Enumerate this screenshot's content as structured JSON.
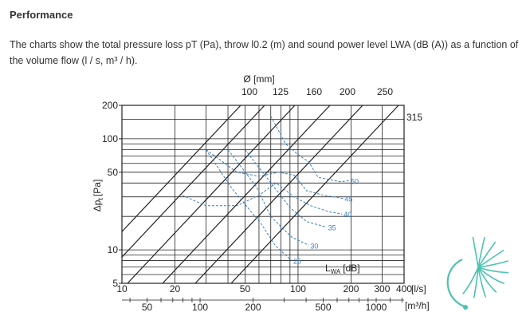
{
  "page": {
    "heading": "Performance",
    "description": "The charts show the total pressure loss pT (Pa), throw l0.2 (m) and sound power level LWA (dB (A)) as a function of the volume flow (l / s, m³ / h)."
  },
  "chart_data": {
    "type": "line",
    "title": "",
    "top_axis_title": "Ø [mm]",
    "diameter_labels": [
      "100",
      "125",
      "160",
      "200",
      "250",
      "315"
    ],
    "diameters": [
      100,
      125,
      160,
      200,
      250,
      315
    ],
    "ylabel_main": "Δp",
    "ylabel_sub": "t",
    "ylabel_unit": "[Pa]",
    "y_ticks": [
      {
        "value": 200,
        "label": "200"
      },
      {
        "value": 100,
        "label": "100"
      },
      {
        "value": 50,
        "label": "50"
      },
      {
        "value": 10,
        "label": "10"
      },
      {
        "value": 5,
        "label": "5"
      }
    ],
    "ylim": [
      5,
      200
    ],
    "x_ticks_ls": [
      {
        "value": 10,
        "label": "10"
      },
      {
        "value": 20,
        "label": "20"
      },
      {
        "value": 50,
        "label": "50"
      },
      {
        "value": 100,
        "label": "100"
      },
      {
        "value": 200,
        "label": "200"
      },
      {
        "value": 300,
        "label": "300"
      },
      {
        "value": 400,
        "label": "400"
      }
    ],
    "x_unit_ls": "[l/s]",
    "x_ticks_m3h": [
      {
        "value": 50,
        "label": "50"
      },
      {
        "value": 100,
        "label": "100"
      },
      {
        "value": 200,
        "label": "200"
      },
      {
        "value": 500,
        "label": "500"
      },
      {
        "value": 1000,
        "label": "1000"
      }
    ],
    "x_unit_m3h": "[m³/h]",
    "xlim": [
      10,
      400
    ],
    "grid": true,
    "sound_label_main": "L",
    "sound_label_sub": "WA",
    "sound_label_unit": "[dB]",
    "sound_levels": [
      {
        "label": "25",
        "points": [
          [
            30,
            80
          ],
          [
            42,
            36
          ],
          [
            62,
            17
          ],
          [
            74,
            11
          ],
          [
            92,
            8
          ]
        ]
      },
      {
        "label": "30",
        "points": [
          [
            40,
            80
          ],
          [
            58,
            37
          ],
          [
            70,
            20
          ],
          [
            92,
            13
          ],
          [
            115,
            11
          ]
        ]
      },
      {
        "label": "35",
        "points": [
          [
            50,
            80
          ],
          [
            72,
            38
          ],
          [
            90,
            24
          ],
          [
            112,
            18
          ],
          [
            145,
            16
          ]
        ]
      },
      {
        "label": "40",
        "points": [
          [
            22,
            31
          ],
          [
            30,
            25
          ],
          [
            45,
            25
          ],
          [
            60,
            31
          ],
          [
            75,
            40
          ],
          [
            95,
            30
          ],
          [
            118,
            25
          ],
          [
            150,
            22
          ],
          [
            178,
            21
          ]
        ]
      },
      {
        "label": "45",
        "points": [
          [
            30,
            80
          ],
          [
            45,
            50
          ],
          [
            60,
            46
          ],
          [
            78,
            50
          ],
          [
            95,
            47
          ],
          [
            112,
            34
          ],
          [
            140,
            31
          ],
          [
            180,
            29
          ]
        ]
      },
      {
        "label": "50",
        "points": [
          [
            70,
            160
          ],
          [
            85,
            90
          ],
          [
            100,
            72
          ],
          [
            115,
            62
          ],
          [
            130,
            45
          ],
          [
            175,
            41
          ],
          [
            195,
            42
          ]
        ]
      }
    ],
    "colors": {
      "grid": "#222222",
      "curves": "#3a7fc1",
      "text": "#222222",
      "logo": "#4cc3b0"
    }
  }
}
